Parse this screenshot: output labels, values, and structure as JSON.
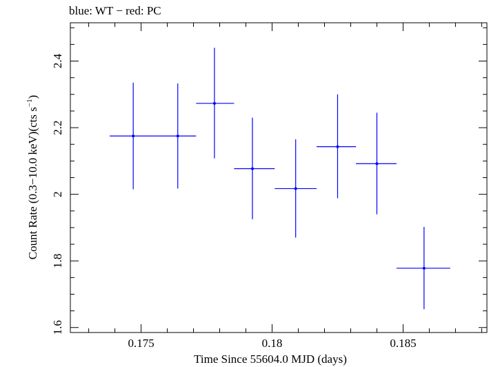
{
  "header": {
    "title": "blue: WT − red: PC"
  },
  "axes": {
    "xlabel": "Time Since 55604.0 MJD (days)",
    "ylabel_main": "Count Rate (0.3−10.0 keV)(cts s",
    "ylabel_sup": "−1",
    "ylabel_close": ")"
  },
  "colors": {
    "wt": "#0000ff",
    "pc": "#ff0000",
    "axis": "#000000"
  },
  "chart_data": {
    "type": "scatter",
    "title": "blue: WT − red: PC",
    "xlabel": "Time Since 55604.0 MJD (days)",
    "ylabel": "Count Rate (0.3−10.0 keV)(cts s⁻¹)",
    "xlim": [
      0.1723,
      0.1882
    ],
    "ylim": [
      1.585,
      2.515
    ],
    "xticks": [
      0.175,
      0.18,
      0.185
    ],
    "xtick_labels": [
      "0.175",
      "0.18",
      "0.185"
    ],
    "yticks": [
      1.6,
      1.8,
      2.0,
      2.2,
      2.4
    ],
    "ytick_labels": [
      "1.6",
      "1.8",
      "2",
      "2.2",
      "2.4"
    ],
    "grid": false,
    "series": [
      {
        "name": "WT",
        "color": "#0000ff",
        "points": [
          {
            "x": 0.1747,
            "y": 2.175,
            "xlo": 0.1738,
            "xhi": 0.1756,
            "ylo": 2.015,
            "yhi": 2.335
          },
          {
            "x": 0.1764,
            "y": 2.175,
            "xlo": 0.1756,
            "xhi": 0.1771,
            "ylo": 2.017,
            "yhi": 2.333
          },
          {
            "x": 0.1778,
            "y": 2.273,
            "xlo": 0.1771,
            "xhi": 0.17855,
            "ylo": 2.108,
            "yhi": 2.44
          },
          {
            "x": 0.17925,
            "y": 2.077,
            "xlo": 0.17855,
            "xhi": 0.1801,
            "ylo": 1.925,
            "yhi": 2.23
          },
          {
            "x": 0.1809,
            "y": 2.017,
            "xlo": 0.1801,
            "xhi": 0.1817,
            "ylo": 1.87,
            "yhi": 2.165
          },
          {
            "x": 0.1825,
            "y": 2.143,
            "xlo": 0.1817,
            "xhi": 0.1832,
            "ylo": 1.988,
            "yhi": 2.3
          },
          {
            "x": 0.184,
            "y": 2.092,
            "xlo": 0.1832,
            "xhi": 0.18475,
            "ylo": 1.94,
            "yhi": 2.245
          },
          {
            "x": 0.1858,
            "y": 1.778,
            "xlo": 0.18475,
            "xhi": 0.1868,
            "ylo": 1.655,
            "yhi": 1.902
          }
        ]
      }
    ]
  }
}
